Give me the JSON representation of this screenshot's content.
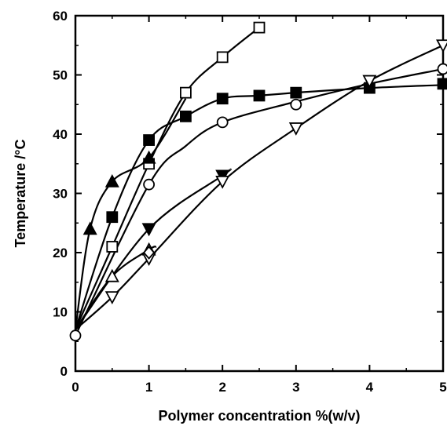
{
  "chart_data": {
    "type": "scatter",
    "xlabel": "Polymer concentration  %(w/v)",
    "ylabel": "Temperature /°C",
    "xlim": [
      0,
      5
    ],
    "ylim": [
      0,
      60
    ],
    "xticks": [
      "0",
      "1",
      "2",
      "3",
      "4",
      "5"
    ],
    "yticks": [
      "0",
      "10",
      "20",
      "30",
      "40",
      "50",
      "60"
    ],
    "grid": false,
    "legend": "none",
    "series": [
      {
        "marker": "open-square",
        "x": [
          0.5,
          1.0,
          1.5,
          2.0,
          2.5
        ],
        "y": [
          21,
          35,
          47,
          53,
          58
        ],
        "curve": [
          [
            0,
            7
          ],
          [
            0.5,
            21
          ],
          [
            1.0,
            35
          ],
          [
            1.5,
            47
          ],
          [
            2.0,
            53
          ],
          [
            2.5,
            58
          ]
        ]
      },
      {
        "marker": "filled-square",
        "x": [
          0.5,
          1.0,
          1.5,
          2.0,
          2.5,
          3.0,
          4.0,
          5.0
        ],
        "y": [
          26,
          39,
          43,
          46,
          46.5,
          47,
          47.8,
          48.5
        ],
        "curve": [
          [
            0,
            7
          ],
          [
            0.5,
            26
          ],
          [
            1.0,
            39
          ],
          [
            1.5,
            43
          ],
          [
            2.0,
            46
          ],
          [
            2.5,
            46.5
          ],
          [
            3.0,
            47
          ],
          [
            4.0,
            47.8
          ],
          [
            5.0,
            48.3
          ]
        ]
      },
      {
        "marker": "filled-triangle-up",
        "x": [
          0.2,
          0.5,
          1.0
        ],
        "y": [
          24,
          32,
          36
        ],
        "curve": [
          [
            0,
            7
          ],
          [
            0.2,
            24
          ],
          [
            0.5,
            32
          ],
          [
            1.0,
            36
          ],
          [
            1.5,
            46
          ]
        ]
      },
      {
        "marker": "open-circle",
        "x": [
          0,
          1.0,
          2.0,
          3.0,
          5.0
        ],
        "y": [
          6,
          31.5,
          42,
          45,
          51
        ],
        "curve": [
          [
            0,
            6
          ],
          [
            1.0,
            31.5
          ],
          [
            1.5,
            38
          ],
          [
            2.0,
            42
          ],
          [
            3.0,
            45.5
          ],
          [
            4.0,
            48.5
          ],
          [
            5.0,
            51
          ]
        ]
      },
      {
        "marker": "filled-triangle-down",
        "x": [
          1.0,
          2.0
        ],
        "y": [
          24,
          33
        ],
        "curve": [
          [
            0,
            7
          ],
          [
            1.0,
            24
          ],
          [
            2.0,
            33
          ],
          [
            2.1,
            34
          ]
        ]
      },
      {
        "marker": "open-triangle-up",
        "x": [
          0.5,
          1.0
        ],
        "y": [
          16,
          20.5
        ],
        "curve": [
          [
            0,
            7
          ],
          [
            0.5,
            16
          ],
          [
            1.0,
            20.5
          ],
          [
            1.1,
            21
          ]
        ]
      },
      {
        "marker": "open-triangle-down",
        "x": [
          0.5,
          1.0,
          2.0,
          3.0,
          4.0,
          5.0
        ],
        "y": [
          12.5,
          19,
          32,
          41,
          49,
          55
        ],
        "curve": [
          [
            0,
            7
          ],
          [
            0.5,
            12.5
          ],
          [
            1.0,
            19
          ],
          [
            2.0,
            32
          ],
          [
            3.0,
            41
          ],
          [
            4.0,
            49
          ],
          [
            5.0,
            55
          ]
        ]
      },
      {
        "marker": "open-diamond",
        "x": [
          1.0
        ],
        "y": [
          20
        ],
        "curve": []
      }
    ]
  }
}
